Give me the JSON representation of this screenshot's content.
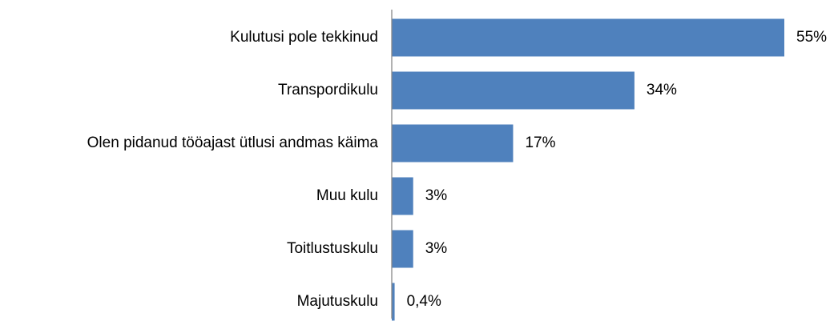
{
  "chart_data": {
    "type": "bar",
    "orientation": "horizontal",
    "categories": [
      "Kulutusi pole tekkinud",
      "Transpordikulu",
      "Olen pidanud tööajast ütlusi andmas käima",
      "Muu kulu",
      "Toitlustuskulu",
      "Majutuskulu"
    ],
    "values": [
      55,
      34,
      17,
      3,
      3,
      0.4
    ],
    "value_labels": [
      "55%",
      "34%",
      "17%",
      "3%",
      "3%",
      "0,4%"
    ],
    "color": "#4f81bd"
  }
}
